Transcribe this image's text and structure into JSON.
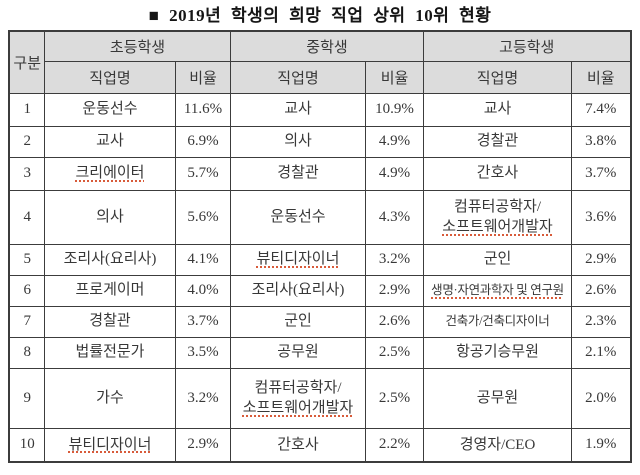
{
  "title": "■ 2019년  학생의  희망  직업  상위  10위  현황",
  "colors": {
    "header_bg": "#dcdcdc",
    "border": "#3c3c3c",
    "text": "#383838",
    "spell_underline": "#d85b3a"
  },
  "table": {
    "corner_header": "구분",
    "groups": [
      "초등학생",
      "중학생",
      "고등학생"
    ],
    "job_header": "직업명",
    "ratio_header": "비율",
    "rows": [
      {
        "rank": "1",
        "cells": [
          {
            "job": "운동선수",
            "ratio": "11.6%"
          },
          {
            "job": "교사",
            "ratio": "10.9%"
          },
          {
            "job": "교사",
            "ratio": "7.4%"
          }
        ]
      },
      {
        "rank": "2",
        "cells": [
          {
            "job": "교사",
            "ratio": "6.9%"
          },
          {
            "job": "의사",
            "ratio": "4.9%"
          },
          {
            "job": "경찰관",
            "ratio": "3.8%"
          }
        ]
      },
      {
        "rank": "3",
        "cells": [
          {
            "job": "크리에이터",
            "ratio": "5.7%",
            "spellcheck": true
          },
          {
            "job": "경찰관",
            "ratio": "4.9%"
          },
          {
            "job": "간호사",
            "ratio": "3.7%"
          }
        ]
      },
      {
        "rank": "4",
        "cells": [
          {
            "job": "의사",
            "ratio": "5.6%"
          },
          {
            "job": "운동선수",
            "ratio": "4.3%"
          },
          {
            "job": "컴퓨터공학자/\n소프트웨어개발자",
            "ratio": "3.6%",
            "spellcheck_line": 1
          }
        ]
      },
      {
        "rank": "5",
        "cells": [
          {
            "job": "조리사(요리사)",
            "ratio": "4.1%"
          },
          {
            "job": "뷰티디자이너",
            "ratio": "3.2%",
            "spellcheck": true
          },
          {
            "job": "군인",
            "ratio": "2.9%"
          }
        ]
      },
      {
        "rank": "6",
        "cells": [
          {
            "job": "프로게이머",
            "ratio": "4.0%"
          },
          {
            "job": "조리사(요리사)",
            "ratio": "2.9%"
          },
          {
            "job": "생명·자연과학자 및 연구원",
            "ratio": "2.6%",
            "spellcheck": true,
            "small": true
          }
        ]
      },
      {
        "rank": "7",
        "cells": [
          {
            "job": "경찰관",
            "ratio": "3.7%"
          },
          {
            "job": "군인",
            "ratio": "2.6%"
          },
          {
            "job": "건축가/건축디자이너",
            "ratio": "2.3%",
            "small": true
          }
        ]
      },
      {
        "rank": "8",
        "cells": [
          {
            "job": "법률전문가",
            "ratio": "3.5%"
          },
          {
            "job": "공무원",
            "ratio": "2.5%"
          },
          {
            "job": "항공기승무원",
            "ratio": "2.1%"
          }
        ]
      },
      {
        "rank": "9",
        "cells": [
          {
            "job": "가수",
            "ratio": "3.2%"
          },
          {
            "job": "컴퓨터공학자/\n소프트웨어개발자",
            "ratio": "2.5%",
            "spellcheck_line": 1
          },
          {
            "job": "공무원",
            "ratio": "2.0%"
          }
        ]
      },
      {
        "rank": "10",
        "cells": [
          {
            "job": "뷰티디자이너",
            "ratio": "2.9%",
            "spellcheck": true
          },
          {
            "job": "간호사",
            "ratio": "2.2%"
          },
          {
            "job": "경영자/CEO",
            "ratio": "1.9%"
          }
        ]
      }
    ]
  }
}
